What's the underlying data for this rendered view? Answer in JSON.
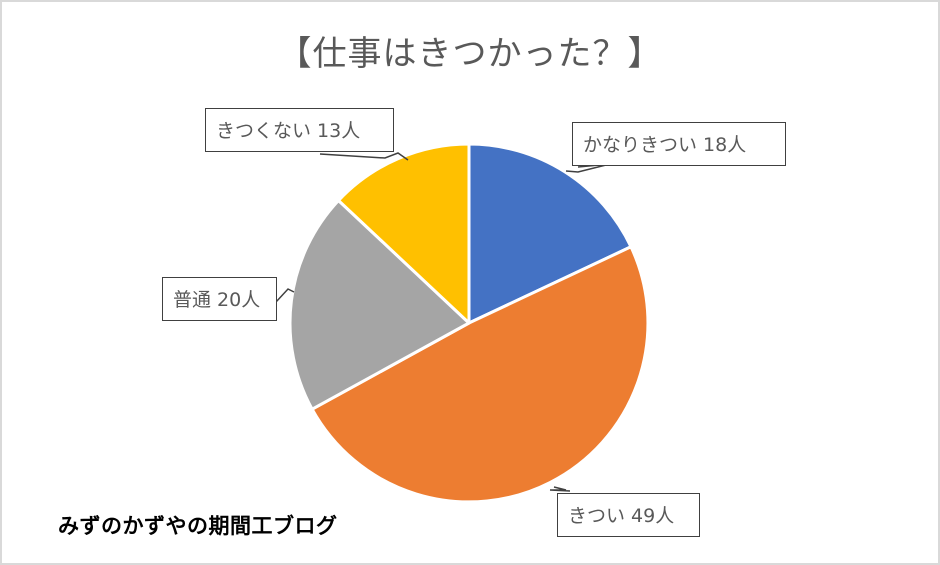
{
  "chart_data": {
    "type": "pie",
    "title": "【仕事はきつかった？】",
    "unit": "人",
    "start_angle": "12 o'clock, clockwise",
    "slices": [
      {
        "label": "かなりきつい",
        "value": 18,
        "color": "#4472c4",
        "data_label": "かなりきつい 18人"
      },
      {
        "label": "きつい",
        "value": 49,
        "color": "#ed7d31",
        "data_label": "きつい 49人"
      },
      {
        "label": "普通",
        "value": 20,
        "color": "#a5a5a5",
        "data_label": "普通 20人"
      },
      {
        "label": "きつくない",
        "value": 13,
        "color": "#ffc000",
        "data_label": "きつくない 13人"
      }
    ],
    "total": 100,
    "legend": "none",
    "data_labels": "callouts"
  },
  "title": "【仕事はきつかった？】",
  "labels": {
    "very_hard": "かなりきつい 18人",
    "hard": "きつい 49人",
    "normal": "普通 20人",
    "not_hard": "きつくない 13人"
  },
  "watermark": "みずのかずやの期間工ブログ"
}
